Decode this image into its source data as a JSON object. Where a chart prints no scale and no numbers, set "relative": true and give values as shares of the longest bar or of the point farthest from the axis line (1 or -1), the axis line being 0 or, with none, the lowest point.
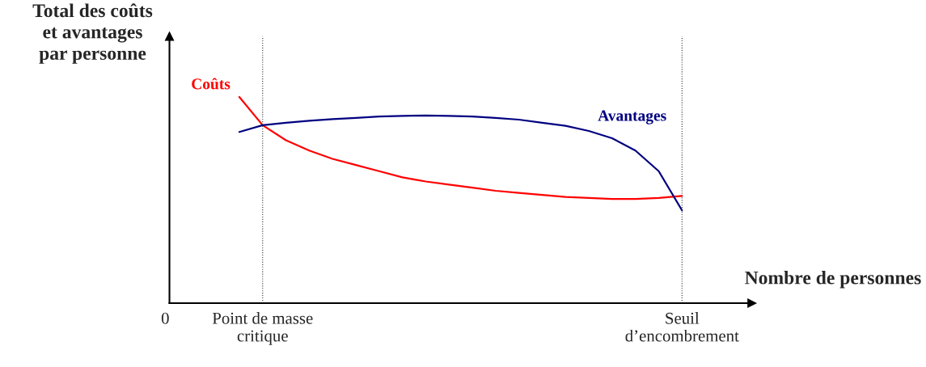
{
  "chart_data": {
    "type": "line",
    "relative": true,
    "xlabel": "Nombre de personnes",
    "ylabel": "Total des coûts\net avantages\npar personne",
    "categories": [
      "0",
      null,
      null,
      null,
      "Point de masse\ncritique",
      null,
      null,
      null,
      null,
      null,
      null,
      null,
      null,
      null,
      null,
      null,
      null,
      null,
      null,
      null,
      null,
      null,
      "Seuil\nd’encombrement",
      null,
      null,
      null
    ],
    "ref_lines": [
      {
        "axis": "x",
        "value": "Point de masse\ncritique",
        "label": null,
        "color": "#333333",
        "line_style": "dotted"
      },
      {
        "axis": "x",
        "value": "Seuil\nd’encombrement",
        "label": null,
        "color": "#333333",
        "line_style": "dotted"
      }
    ],
    "grid": false,
    "legend": false,
    "marker": "none",
    "line_style": "solid",
    "series": [
      {
        "name": "Coûts",
        "color": "#ff0000",
        "values": [
          null,
          null,
          null,
          1.0,
          0.863,
          0.79,
          0.74,
          0.7,
          0.67,
          0.64,
          0.61,
          0.59,
          0.575,
          0.56,
          0.545,
          0.535,
          0.525,
          0.515,
          0.51,
          0.505,
          0.505,
          0.51,
          0.52,
          null,
          null,
          null
        ]
      },
      {
        "name": "Avantages",
        "color": "#000080",
        "values": [
          null,
          null,
          null,
          0.83,
          0.863,
          0.875,
          0.885,
          0.892,
          0.898,
          0.905,
          0.908,
          0.91,
          0.908,
          0.905,
          0.898,
          0.89,
          0.875,
          0.86,
          0.835,
          0.8,
          0.74,
          0.64,
          0.45,
          null,
          null,
          null
        ]
      }
    ]
  }
}
